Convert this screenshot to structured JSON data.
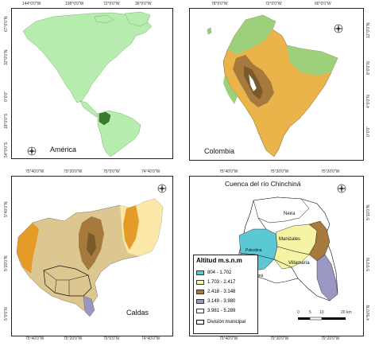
{
  "colors": {
    "alt_804_1702": "#5cc8d4",
    "alt_1703_2417": "#f6f3a5",
    "alt_2418_3148": "#a67a3c",
    "alt_3149_3980": "#9a97c2",
    "alt_3981_5289": "#ffffff",
    "america_land": "#b6ecad",
    "colombia_highlight": "#3a7a2e",
    "colombia_low": "#eab44a",
    "colombia_mid": "#9dd07a",
    "caldas_orange": "#e59b27",
    "caldas_tan": "#ddc790",
    "caldas_brown": "#7a5a2a"
  },
  "panel_america": {
    "label": "América",
    "top_ticks": [
      "144°0'0\"W",
      "108°0'0\"W",
      "72°0'0\"W",
      "36°0'0\"W"
    ],
    "bottom_ticks": [
      "144°0'0\"W",
      "108°0'0\"W",
      "72°0'0\"W",
      "36°0'0\"W"
    ],
    "left_ticks": [
      "67°0'0\"N",
      "32°0'0\"N",
      "0°0'0\"",
      "18°0'0\"S",
      "54°0'0\"S"
    ],
    "right_ticks": [
      "67°0'0\"N",
      "32°0'0\"N",
      "0°0'0\"",
      "18°0'0\"S",
      "54°0'0\"S"
    ]
  },
  "panel_colombia": {
    "label": "Colombia",
    "top_ticks": [
      "78°0'0\"W",
      "72°0'0\"W",
      "66°0'0\"W"
    ],
    "bottom_ticks": [
      "78°0'0\"W",
      "72°0'0\"W",
      "66°0'0\"W"
    ],
    "left_ticks": [
      "12°0'0\"N",
      "8°0'0\"N",
      "4°0'0\"N",
      "0°0'0\""
    ],
    "right_ticks": [
      "12°0'0\"N",
      "8°0'0\"N",
      "4°0'0\"N",
      "0°0'0\""
    ]
  },
  "panel_caldas": {
    "label": "Caldas",
    "top_ticks": [
      "75°40'0\"W",
      "75°20'0\"W",
      "75°0'0\"W",
      "74°40'0\"W"
    ],
    "bottom_ticks": [
      "75°40'0\"W",
      "75°20'0\"W",
      "75°0'0\"W",
      "74°40'0\"W"
    ],
    "left_ticks": [
      "5°40'0\"N",
      "5°20'0\"N",
      "5°0'0\"N"
    ],
    "right_ticks": [
      "5°40'0\"N",
      "5°20'0\"N",
      "5°0'0\"N"
    ]
  },
  "panel_chinchina": {
    "title": "Cuenca del río Chinchiná",
    "top_ticks": [
      "75°40'0\"W",
      "75°30'0\"W",
      "75°20'0\"W"
    ],
    "bottom_ticks": [
      "75°40'0\"W",
      "75°30'0\"W",
      "75°20'0\"W"
    ],
    "left_ticks": [
      "5°10'0\"N",
      "5°0'0\"N",
      "4°50'0\"N"
    ],
    "right_ticks": [
      "5°10'0\"N",
      "5°0'0\"N",
      "4°50'0\"N"
    ],
    "places": {
      "neira": "Neira",
      "manizales": "Manizales",
      "villamaria": "Villamaría",
      "palestina": "Palestina",
      "chinchina": "Chinchiná"
    },
    "legend": {
      "title": "Altitud m.s.n.m",
      "items": [
        {
          "label": "804 - 1.702",
          "color": "#5cc8d4"
        },
        {
          "label": "1.703 - 2.417",
          "color": "#f6f3a5"
        },
        {
          "label": "2.418 - 3.148",
          "color": "#a67a3c"
        },
        {
          "label": "3.149 - 3.980",
          "color": "#9a97c2"
        },
        {
          "label": "3.981 - 5.289",
          "color": "#ffffff"
        },
        {
          "label": "División municipal",
          "color": "#ffffff"
        }
      ]
    },
    "scale": {
      "ticks": [
        "0",
        "5",
        "10",
        "20 km"
      ]
    }
  }
}
